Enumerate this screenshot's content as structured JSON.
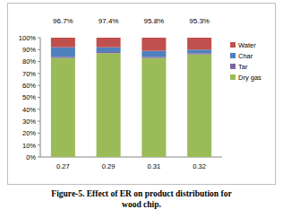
{
  "chart_data": {
    "type": "bar",
    "stacked": true,
    "categories": [
      "0.27",
      "0.29",
      "0.31",
      "0.32"
    ],
    "series": [
      {
        "name": "Dry gas",
        "color": "#9bbb59",
        "values": [
          83,
          87,
          83,
          86
        ]
      },
      {
        "name": "Tar",
        "color": "#8064a2",
        "values": [
          1,
          1,
          1,
          1
        ]
      },
      {
        "name": "Char",
        "color": "#4f81bd",
        "values": [
          8,
          4,
          5,
          3
        ]
      },
      {
        "name": "Water",
        "color": "#c0504d",
        "values": [
          8,
          8,
          11,
          10
        ]
      }
    ],
    "annotations": [
      "96.7%",
      "97.4%",
      "95.8%",
      "95.3%"
    ],
    "ylim": [
      0,
      100
    ],
    "yticks": [
      {
        "value": 0,
        "label": "0%"
      },
      {
        "value": 10,
        "label": "10%"
      },
      {
        "value": 20,
        "label": "20%"
      },
      {
        "value": 30,
        "label": "30%"
      },
      {
        "value": 40,
        "label": "40%"
      },
      {
        "value": 50,
        "label": "50%"
      },
      {
        "value": 60,
        "label": "60%"
      },
      {
        "value": 70,
        "label": "70%"
      },
      {
        "value": 80,
        "label": "80%"
      },
      {
        "value": 90,
        "label": "90%"
      },
      {
        "value": 100,
        "label": "100%"
      }
    ],
    "grid": false,
    "legend": "right",
    "caption": "Figure-5. Effect of ER on product distribution for wood chip."
  }
}
